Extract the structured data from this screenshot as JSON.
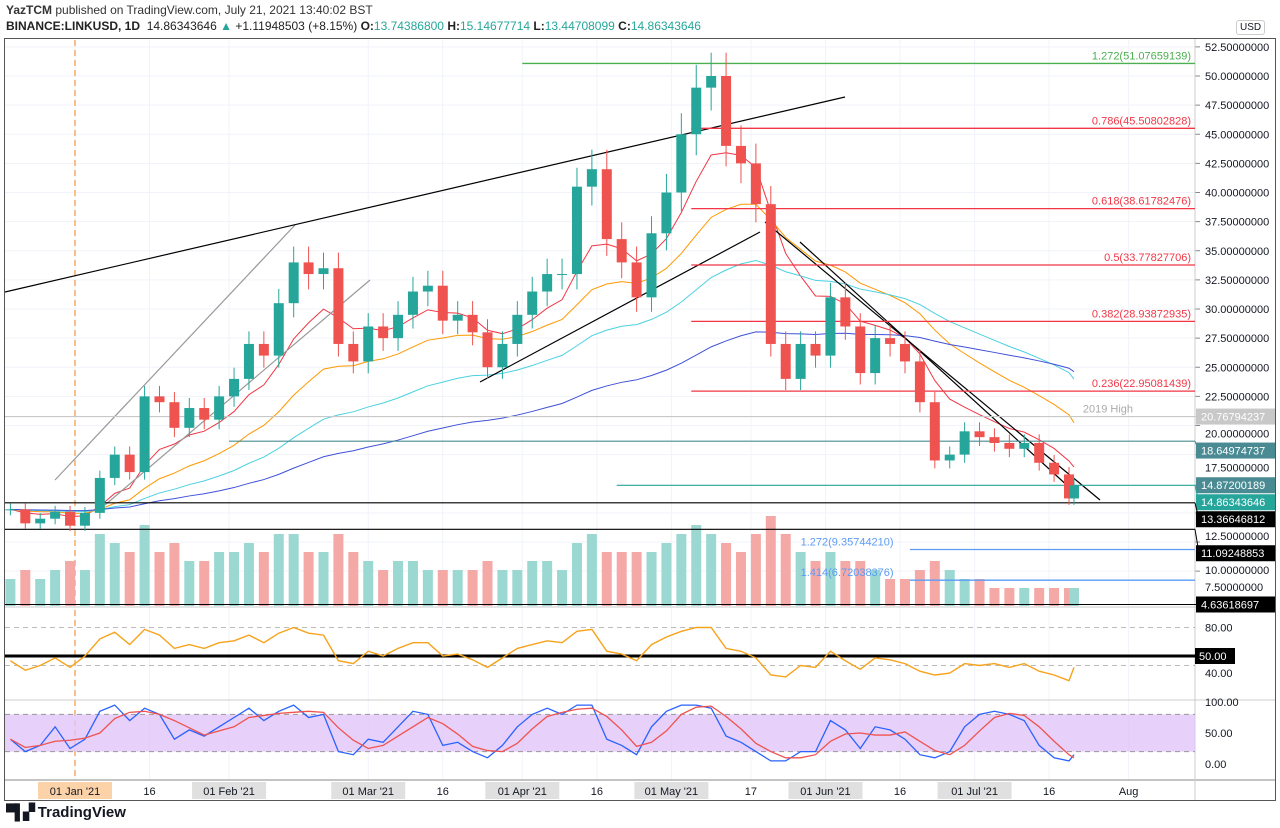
{
  "header": {
    "author": "YazTCM",
    "published": "published on TradingView.com, July 21, 2021 13:40:02 BST",
    "symbol": "BINANCE:LINKUSD, 1D",
    "last": "14.86343646",
    "change": "+1.11948503 (+8.15%)",
    "open_label": "O:",
    "open": "13.74386800",
    "high_label": "H:",
    "high": "15.14677714",
    "low_label": "L:",
    "low": "13.44708099",
    "close_label": "C:",
    "close": "14.86343646"
  },
  "currency": "USD",
  "footer": {
    "logo": "TradingView"
  },
  "colors": {
    "up": "#26a69a",
    "down": "#ef5350",
    "fib": "#f23645",
    "green_fib": "#4caf50",
    "blue_fib": "#5b9cf6",
    "ma20": "#f23645",
    "ma50": "#ff9800",
    "ma100": "#4dd0e1",
    "ma200": "#3f51d8",
    "rsi": "#f7a21b",
    "stoch_k": "#2962ff",
    "stoch_d": "#ef5350",
    "stoch_band": "#e1c4f7"
  },
  "chart_data": {
    "type": "candlestick",
    "price_axis": {
      "ticks": [
        "52.50000000",
        "50.00000000",
        "47.50000000",
        "45.00000000",
        "42.50000000",
        "40.00000000",
        "37.50000000",
        "35.00000000",
        "32.50000000",
        "30.00000000",
        "27.50000000",
        "25.00000000",
        "22.50000000",
        "20.00000000",
        "17.50000000",
        "12.50000000",
        "10.00000000",
        "7.50000000"
      ],
      "range": [
        3.5,
        53
      ]
    },
    "time_axis": [
      {
        "label": "01 Jan '21",
        "date": "2021-01-01",
        "style": "highlight"
      },
      {
        "label": "16",
        "date": "2021-01-16"
      },
      {
        "label": "01 Feb '21",
        "date": "2021-02-01",
        "style": "box"
      },
      {
        "label": "01 Mar '21",
        "date": "2021-03-01",
        "style": "box"
      },
      {
        "label": "16",
        "date": "2021-03-16"
      },
      {
        "label": "01 Apr '21",
        "date": "2021-04-01",
        "style": "box"
      },
      {
        "label": "16",
        "date": "2021-04-16"
      },
      {
        "label": "01 May '21",
        "date": "2021-05-01",
        "style": "box"
      },
      {
        "label": "17",
        "date": "2021-05-17"
      },
      {
        "label": "01 Jun '21",
        "date": "2021-06-01",
        "style": "box"
      },
      {
        "label": "16",
        "date": "2021-06-16"
      },
      {
        "label": "01 Jul '21",
        "date": "2021-07-01",
        "style": "box"
      },
      {
        "label": "16",
        "date": "2021-07-16"
      },
      {
        "label": "Aug",
        "date": "2021-08-01"
      }
    ],
    "candles": [
      [
        "2020-12-19",
        12.8
      ],
      [
        "2020-12-22",
        11.6
      ],
      [
        "2020-12-25",
        12.0
      ],
      [
        "2020-12-28",
        12.6
      ],
      [
        "2020-12-31",
        11.4
      ],
      [
        "2021-01-03",
        12.5
      ],
      [
        "2021-01-06",
        15.5
      ],
      [
        "2021-01-09",
        17.5
      ],
      [
        "2021-01-12",
        16.0
      ],
      [
        "2021-01-15",
        22.5
      ],
      [
        "2021-01-18",
        22.0
      ],
      [
        "2021-01-21",
        19.8
      ],
      [
        "2021-01-24",
        21.5
      ],
      [
        "2021-01-27",
        20.5
      ],
      [
        "2021-01-30",
        22.5
      ],
      [
        "2021-02-02",
        24.0
      ],
      [
        "2021-02-05",
        27.0
      ],
      [
        "2021-02-08",
        26.0
      ],
      [
        "2021-02-11",
        30.5
      ],
      [
        "2021-02-14",
        34.0
      ],
      [
        "2021-02-17",
        33.0
      ],
      [
        "2021-02-20",
        33.5
      ],
      [
        "2021-02-23",
        27.0
      ],
      [
        "2021-02-26",
        25.5
      ],
      [
        "2021-03-01",
        28.5
      ],
      [
        "2021-03-04",
        27.5
      ],
      [
        "2021-03-07",
        29.5
      ],
      [
        "2021-03-10",
        31.5
      ],
      [
        "2021-03-13",
        32.0
      ],
      [
        "2021-03-16",
        29.0
      ],
      [
        "2021-03-19",
        29.5
      ],
      [
        "2021-03-22",
        28.0
      ],
      [
        "2021-03-25",
        25.0
      ],
      [
        "2021-03-28",
        27.0
      ],
      [
        "2021-03-31",
        29.5
      ],
      [
        "2021-04-03",
        31.5
      ],
      [
        "2021-04-06",
        33.0
      ],
      [
        "2021-04-09",
        33.0
      ],
      [
        "2021-04-12",
        40.5
      ],
      [
        "2021-04-15",
        42.0
      ],
      [
        "2021-04-18",
        36.0
      ],
      [
        "2021-04-21",
        34.0
      ],
      [
        "2021-04-24",
        31.0
      ],
      [
        "2021-04-27",
        36.5
      ],
      [
        "2021-04-30",
        40.0
      ],
      [
        "2021-05-03",
        45.0
      ],
      [
        "2021-05-06",
        49.0
      ],
      [
        "2021-05-09",
        50.0
      ],
      [
        "2021-05-12",
        44.0
      ],
      [
        "2021-05-15",
        42.5
      ],
      [
        "2021-05-18",
        39.0
      ],
      [
        "2021-05-21",
        27.0
      ],
      [
        "2021-05-24",
        24.0
      ],
      [
        "2021-05-27",
        27.0
      ],
      [
        "2021-05-30",
        26.0
      ],
      [
        "2021-06-02",
        31.0
      ],
      [
        "2021-06-05",
        28.5
      ],
      [
        "2021-06-08",
        24.5
      ],
      [
        "2021-06-11",
        27.5
      ],
      [
        "2021-06-14",
        27.0
      ],
      [
        "2021-06-17",
        25.5
      ],
      [
        "2021-06-20",
        22.0
      ],
      [
        "2021-06-23",
        17.0
      ],
      [
        "2021-06-26",
        17.5
      ],
      [
        "2021-06-29",
        19.5
      ],
      [
        "2021-07-02",
        19.0
      ],
      [
        "2021-07-05",
        18.5
      ],
      [
        "2021-07-08",
        18.0
      ],
      [
        "2021-07-11",
        18.5
      ],
      [
        "2021-07-14",
        16.8
      ],
      [
        "2021-07-17",
        15.8
      ],
      [
        "2021-07-20",
        13.74
      ],
      [
        "2021-07-21",
        14.86
      ]
    ],
    "volume": [
      3,
      4,
      3,
      4,
      5,
      4,
      8,
      7,
      6,
      9,
      6,
      7,
      5,
      5,
      6,
      6,
      7,
      6,
      8,
      8,
      6,
      6,
      8,
      6,
      5,
      4,
      5,
      5,
      4,
      4,
      4,
      4,
      5,
      4,
      4,
      5,
      5,
      4,
      7,
      8,
      6,
      6,
      6,
      6,
      7,
      8,
      9,
      8,
      7,
      6,
      8,
      10,
      8,
      6,
      5,
      6,
      5,
      5,
      4,
      3,
      3,
      4,
      5,
      4,
      3,
      3,
      2,
      2,
      2,
      2,
      2,
      2,
      2
    ],
    "rsi": {
      "ticks": [
        "80.00",
        "40.00"
      ],
      "level_label": "50.00",
      "values": [
        45,
        35,
        40,
        48,
        38,
        50,
        68,
        75,
        62,
        78,
        72,
        58,
        62,
        58,
        64,
        66,
        72,
        64,
        74,
        80,
        74,
        72,
        45,
        42,
        55,
        50,
        58,
        64,
        64,
        50,
        52,
        46,
        38,
        48,
        58,
        62,
        66,
        64,
        76,
        78,
        55,
        52,
        45,
        62,
        70,
        76,
        80,
        80,
        58,
        55,
        48,
        30,
        28,
        40,
        38,
        55,
        45,
        36,
        48,
        46,
        42,
        34,
        30,
        32,
        42,
        40,
        42,
        38,
        42,
        34,
        30,
        24,
        38
      ]
    },
    "stoch": {
      "ticks": [
        "100.00",
        "50.00",
        "0.00"
      ],
      "k": [
        40,
        20,
        30,
        60,
        25,
        40,
        85,
        95,
        70,
        90,
        80,
        40,
        55,
        45,
        60,
        75,
        90,
        70,
        85,
        95,
        75,
        80,
        20,
        15,
        40,
        35,
        60,
        85,
        80,
        30,
        35,
        20,
        10,
        30,
        60,
        80,
        90,
        80,
        95,
        95,
        40,
        30,
        15,
        60,
        85,
        95,
        95,
        90,
        45,
        35,
        20,
        5,
        5,
        20,
        20,
        70,
        55,
        25,
        60,
        55,
        40,
        15,
        10,
        20,
        60,
        80,
        85,
        80,
        70,
        30,
        10,
        5,
        15
      ]
    },
    "fib_levels": [
      {
        "label": "1.272(51.07659139)",
        "price": 51.07659139,
        "color": "#4caf50",
        "from": "2021-04-01"
      },
      {
        "label": "0.786(45.50802828)",
        "price": 45.50802828,
        "color": "#f23645",
        "from": "2021-05-05"
      },
      {
        "label": "0.618(38.61782476)",
        "price": 38.61782476,
        "color": "#f23645",
        "from": "2021-05-05"
      },
      {
        "label": "0.5(33.77827706)",
        "price": 33.77827706,
        "color": "#f23645",
        "from": "2021-05-05"
      },
      {
        "label": "0.382(28.93872935)",
        "price": 28.93872935,
        "color": "#f23645",
        "from": "2021-05-05"
      },
      {
        "label": "0.236(22.95081439)",
        "price": 22.95081439,
        "color": "#f23645",
        "from": "2021-05-05"
      },
      {
        "label": "1.272(9.35744210)",
        "price": 9.3574421,
        "color": "#5b9cf6",
        "from": "2021-06-18",
        "label_at": "2021-05-27"
      },
      {
        "label": "1.414(6.72038376)",
        "price": 6.72038376,
        "color": "#5b9cf6",
        "from": "2021-06-18",
        "label_at": "2021-05-27"
      }
    ],
    "levels": [
      {
        "label": "2019 High",
        "price": 20.76794237,
        "tag": "20.76794237",
        "color": "#c8c8c8",
        "text": "#fff"
      },
      {
        "price": 18.64974737,
        "tag": "18.64974737",
        "color": "#4a8b93",
        "text": "#fff",
        "from": "2021-02-01"
      },
      {
        "price": 14.87200189,
        "tag": "14.87200189",
        "color": "#4a8b93",
        "text": "#fff",
        "line": false
      },
      {
        "price": 14.86343646,
        "tag": "14.86343646",
        "color": "#26a69a",
        "text": "#fff",
        "from": "2021-04-20"
      },
      {
        "price": 13.36646812,
        "tag": "13.36646812",
        "color": "#000",
        "text": "#fff"
      },
      {
        "price": 11.09248853,
        "tag": "11.09248853",
        "color": "#000",
        "text": "#fff"
      },
      {
        "price": 4.63618697,
        "tag": "4.63618697",
        "color": "#000",
        "text": "#fff"
      }
    ]
  }
}
